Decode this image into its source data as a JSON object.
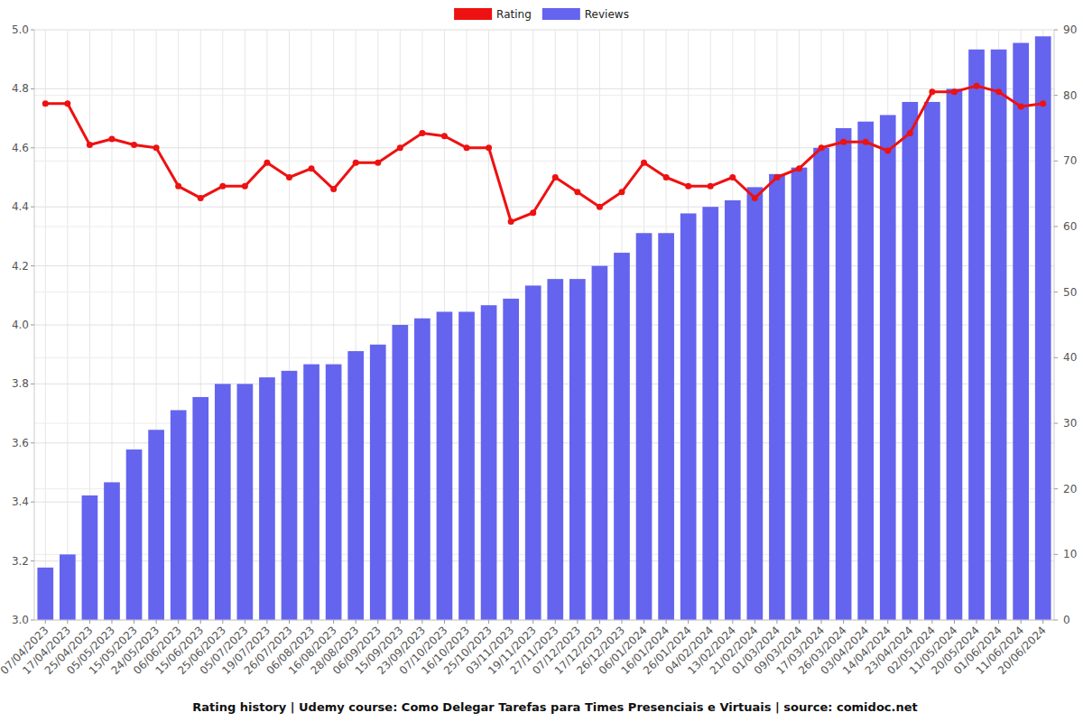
{
  "chart_data": {
    "type": "bar",
    "title": "Rating history | Udemy course: Como Delegar Tarefas para Times Presenciais e Virtuais | source: comidoc.net",
    "categories": [
      "07/04/2023",
      "17/04/2023",
      "25/04/2023",
      "05/05/2023",
      "15/05/2023",
      "24/05/2023",
      "06/06/2023",
      "15/06/2023",
      "25/06/2023",
      "05/07/2023",
      "19/07/2023",
      "26/07/2023",
      "06/08/2023",
      "16/08/2023",
      "28/08/2023",
      "06/09/2023",
      "15/09/2023",
      "23/09/2023",
      "07/10/2023",
      "16/10/2023",
      "25/10/2023",
      "03/11/2023",
      "19/11/2023",
      "27/11/2023",
      "07/12/2023",
      "17/12/2023",
      "26/12/2023",
      "06/01/2024",
      "16/01/2024",
      "26/01/2024",
      "04/02/2024",
      "13/02/2024",
      "21/02/2024",
      "01/03/2024",
      "09/03/2024",
      "17/03/2024",
      "26/03/2024",
      "03/04/2024",
      "14/04/2024",
      "23/04/2024",
      "02/05/2024",
      "11/05/2024",
      "20/05/2024",
      "01/06/2024",
      "11/06/2024",
      "20/06/2024"
    ],
    "series": [
      {
        "name": "Rating",
        "type": "line",
        "color": "#ee1111",
        "marker": "circle",
        "axis": "y",
        "values": [
          4.75,
          4.75,
          4.61,
          4.63,
          4.61,
          4.6,
          4.47,
          4.43,
          4.47,
          4.47,
          4.55,
          4.5,
          4.53,
          4.46,
          4.55,
          4.55,
          4.6,
          4.65,
          4.64,
          4.6,
          4.6,
          4.35,
          4.38,
          4.5,
          4.45,
          4.4,
          4.45,
          4.55,
          4.5,
          4.47,
          4.47,
          4.5,
          4.43,
          4.5,
          4.53,
          4.6,
          4.62,
          4.62,
          4.59,
          4.65,
          4.79,
          4.79,
          4.81,
          4.79,
          4.74,
          4.75
        ]
      },
      {
        "name": "Reviews",
        "type": "bar",
        "color": "#6464ef",
        "axis": "y2",
        "values": [
          8,
          10,
          19,
          21,
          26,
          29,
          32,
          34,
          36,
          36,
          37,
          38,
          39,
          39,
          41,
          42,
          45,
          46,
          47,
          47,
          48,
          49,
          51,
          52,
          52,
          54,
          56,
          59,
          59,
          62,
          63,
          64,
          66,
          68,
          69,
          72,
          75,
          76,
          77,
          79,
          79,
          81,
          87,
          87,
          88,
          89
        ]
      }
    ],
    "ylim": [
      3.0,
      5.0
    ],
    "yticks": [
      {
        "value": 3.0,
        "label": "3.0"
      },
      3.2,
      3.4,
      3.6,
      3.8,
      {
        "value": 4.0,
        "label": "4.0"
      },
      4.2,
      4.4,
      4.6,
      4.8,
      {
        "value": 5.0,
        "label": "5.0"
      }
    ],
    "y2lim": [
      0,
      90
    ],
    "y2ticks": [
      0,
      10,
      20,
      30,
      40,
      50,
      60,
      70,
      80,
      90
    ],
    "grid": true,
    "legend": "top"
  }
}
